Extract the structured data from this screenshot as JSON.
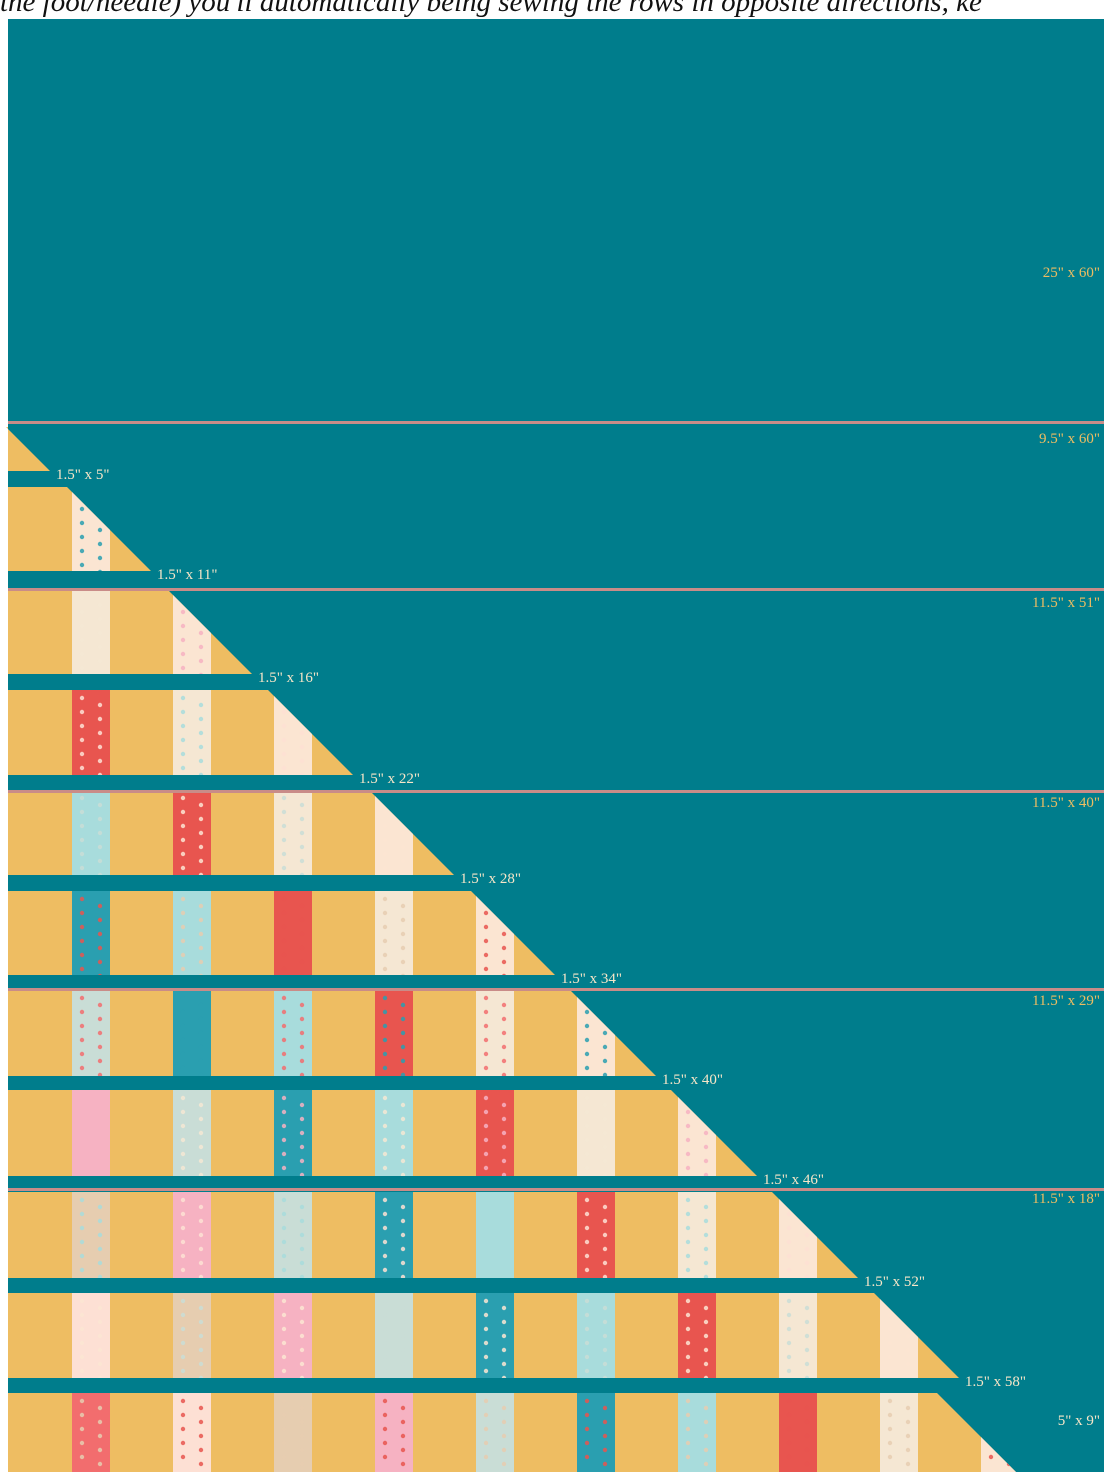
{
  "caption": "the foot/needle) you'll automatically being sewing the rows in opposite directions, ke",
  "colors": {
    "background": "#007d8c",
    "seam": "#c98c88",
    "strip": "#eebd62",
    "label": "#eebd62",
    "row_label": "#f7e6c8",
    "prints": [
      "#f26d6e",
      "#f6b2c2",
      "#a8dcdc",
      "#fbe5d2",
      "#e6cdb0",
      "#2a9fb0",
      "#f5e7d3",
      "#fde0d4",
      "#c9ddd6",
      "#e8554f"
    ]
  },
  "labels": {
    "top_panel": "25\" x 60\"",
    "panel_1": "9.5\" x 60\"",
    "panel_2": "11.5\" x 51\"",
    "panel_3": "11.5\" x 40\"",
    "panel_4": "11.5\" x 29\"",
    "panel_5": "11.5\" x 18\"",
    "corner": "5\" x 9\""
  },
  "rows": [
    {
      "label": "1.5\" x 5\"",
      "prints": 0
    },
    {
      "label": "1.5\" x 11\"",
      "prints": 1
    },
    {
      "label": "1.5\" x 16\"",
      "prints": 2
    },
    {
      "label": "1.5\" x 22\"",
      "prints": 3
    },
    {
      "label": "1.5\" x 28\"",
      "prints": 4
    },
    {
      "label": "1.5\" x 34\"",
      "prints": 5
    },
    {
      "label": "1.5\" x 40\"",
      "prints": 6
    },
    {
      "label": "1.5\" x 46\"",
      "prints": 7
    },
    {
      "label": "1.5\" x 52\"",
      "prints": 8
    },
    {
      "label": "1.5\" x 58\"",
      "prints": 9
    },
    {
      "label": "",
      "prints": 10
    }
  ]
}
